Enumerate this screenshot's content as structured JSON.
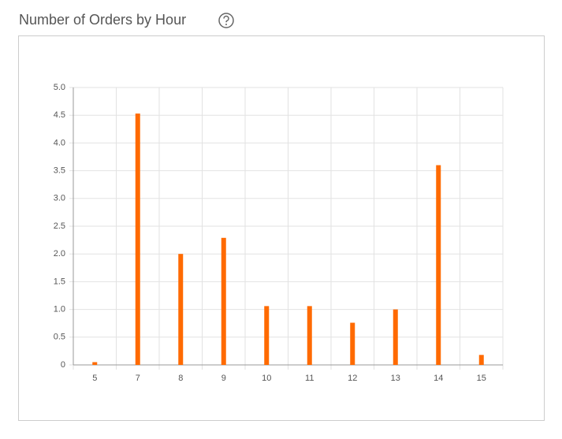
{
  "chart_data": {
    "type": "bar",
    "title": "Number of Orders by Hour",
    "categories": [
      "5",
      "7",
      "8",
      "9",
      "10",
      "11",
      "12",
      "13",
      "14",
      "15"
    ],
    "values": [
      0.05,
      4.53,
      2.0,
      2.29,
      1.06,
      1.06,
      0.76,
      1.0,
      3.6,
      0.18
    ],
    "color": "#ff6a00",
    "ylim": [
      0,
      5
    ],
    "yticks": [
      0,
      {
        "value": 0.5,
        "label": "0.5"
      },
      {
        "value": 1,
        "label": "1.0"
      },
      {
        "value": 1.5,
        "label": "1.5"
      },
      {
        "value": 2,
        "label": "2.0"
      },
      {
        "value": 2.5,
        "label": "2.5"
      },
      {
        "value": 3,
        "label": "3.0"
      },
      {
        "value": 3.5,
        "label": "3.5"
      },
      {
        "value": 4,
        "label": "4.0"
      },
      {
        "value": 4.5,
        "label": "4.5"
      },
      {
        "value": 5,
        "label": "5.0"
      }
    ],
    "grid": true
  }
}
